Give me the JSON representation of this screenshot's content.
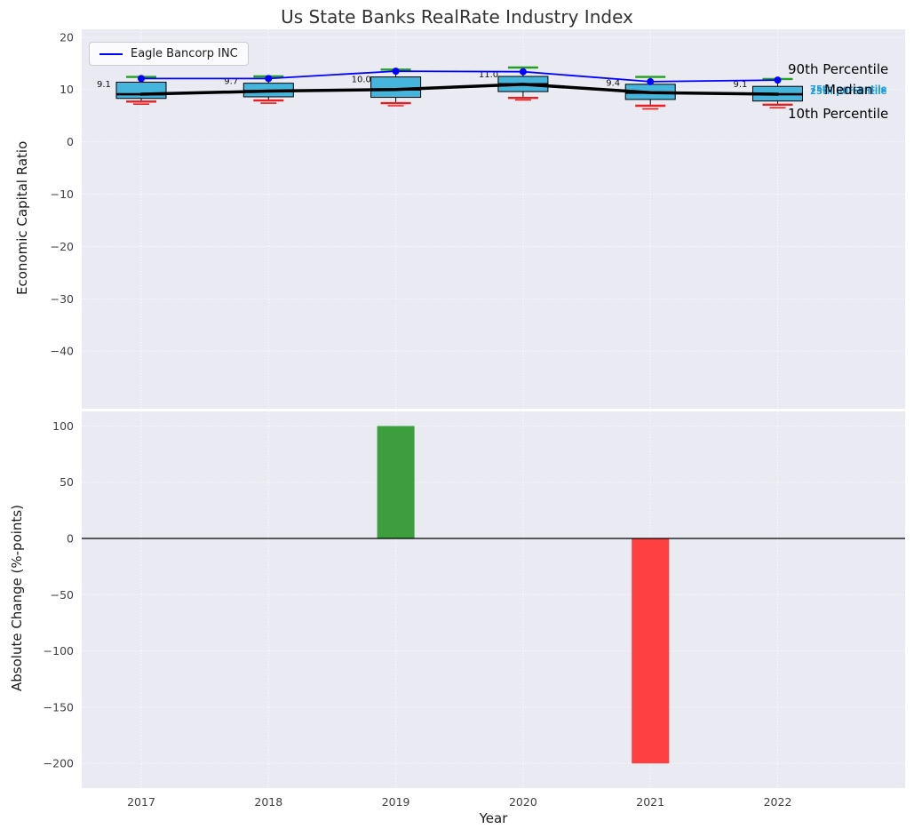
{
  "figure": {
    "title": "Us State Banks RealRate Industry Index"
  },
  "legend": {
    "label": "Eagle Bancorp INC"
  },
  "annotations": {
    "p90": "90th Percentile",
    "median": "Median",
    "p10": "10th Percentile",
    "p75": "75th percentile",
    "p25": "25th percentile"
  },
  "chart_data": [
    {
      "type": "boxplot",
      "title": "Us State Banks RealRate Industry Index",
      "ylabel": "Economic Capital Ratio",
      "categories": [
        "2017",
        "2018",
        "2019",
        "2020",
        "2021",
        "2022"
      ],
      "ylim": [
        -51,
        21.5
      ],
      "yticks": [
        20,
        10,
        0,
        -10,
        -20,
        -30,
        -40
      ],
      "grid": true,
      "legend_position": "upper left",
      "boxes": [
        {
          "year": "2017",
          "p10": 7.7,
          "q1": 8.3,
          "median": 9.1,
          "q3": 11.4,
          "p90": 12.4,
          "fliers": [
            7.2
          ]
        },
        {
          "year": "2018",
          "p10": 7.9,
          "q1": 8.6,
          "median": 9.7,
          "q3": 11.2,
          "p90": 12.5,
          "fliers": [
            7.4
          ]
        },
        {
          "year": "2019",
          "p10": 7.4,
          "q1": 8.5,
          "median": 10.0,
          "q3": 12.4,
          "p90": 13.8,
          "fliers": [
            6.9
          ]
        },
        {
          "year": "2020",
          "p10": 8.4,
          "q1": 9.6,
          "median": 11.0,
          "q3": 12.5,
          "p90": 14.2,
          "fliers": [
            8.0
          ]
        },
        {
          "year": "2021",
          "p10": 6.9,
          "q1": 8.1,
          "median": 9.4,
          "q3": 11.0,
          "p90": 12.4,
          "fliers": [
            6.3
          ]
        },
        {
          "year": "2022",
          "p10": 7.1,
          "q1": 7.8,
          "median": 9.1,
          "q3": 10.6,
          "p90": 12.0,
          "fliers": [
            6.5
          ]
        }
      ],
      "median_labels": [
        "9.1",
        "9.7",
        "10.0",
        "11.0",
        "9.4",
        "9.1"
      ],
      "series": [
        {
          "name": "Eagle Bancorp INC",
          "color": "#0000ff",
          "values": [
            12.1,
            12.1,
            13.5,
            13.4,
            11.5,
            11.8
          ]
        },
        {
          "name": "Median",
          "color": "#000000",
          "values": [
            9.1,
            9.7,
            10.0,
            11.0,
            9.4,
            9.1
          ]
        }
      ],
      "colors": {
        "box_fill": "#45b5dc",
        "box_edge": "#000000",
        "median_line": "#000000",
        "p90_cap": "#22a022",
        "p10_cap": "#e62020",
        "percentile_label_blue": "#1f9ed8",
        "panel_background": "#eaeaf2"
      }
    },
    {
      "type": "bar",
      "ylabel": "Absolute Change (%-points)",
      "xlabel": "Year",
      "categories": [
        "2017",
        "2018",
        "2019",
        "2020",
        "2021",
        "2022"
      ],
      "values": [
        0,
        0,
        100,
        0,
        -200,
        0
      ],
      "ylim": [
        -222,
        113
      ],
      "yticks": [
        100,
        50,
        0,
        -50,
        -100,
        -150,
        -200
      ],
      "colors": {
        "positive": "#3d9e3d",
        "negative": "#ff4040",
        "zero_line": "#000000",
        "panel_background": "#eaeaf2"
      }
    }
  ]
}
